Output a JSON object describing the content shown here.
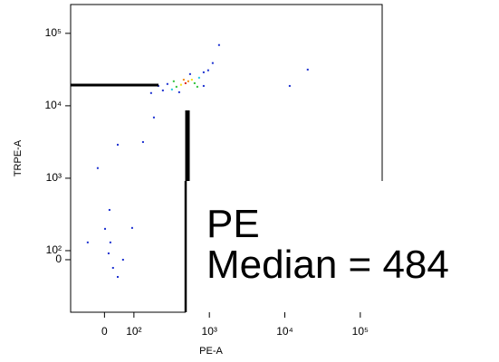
{
  "chart_data": {
    "type": "scatter",
    "x_label": "PE-A",
    "y_label": "TRPE-A",
    "annotation": [
      "PE",
      "Median = 484"
    ],
    "xlim": [
      -115,
      195000
    ],
    "ylim": [
      -580,
      250000
    ],
    "xticks": [
      0,
      {
        "value": 100,
        "label": "10²"
      },
      {
        "value": 1000,
        "label": "10³"
      },
      {
        "value": 10000,
        "label": "10⁴"
      },
      {
        "value": 100000,
        "label": "10⁵"
      }
    ],
    "yticks": [
      0,
      {
        "value": 100,
        "label": "10²"
      },
      {
        "value": 1000,
        "label": "10³"
      },
      {
        "value": 10000,
        "label": "10⁴"
      },
      {
        "value": 100000,
        "label": "10⁵"
      }
    ],
    "x": [
      1343,
      20100,
      11600,
      840,
      169,
      184,
      132,
      45,
      -23,
      17,
      94,
      -57,
      20,
      14,
      29,
      63,
      45,
      2,
      483,
      525,
      421,
      586,
      366,
      637,
      319,
      731,
      278,
      398,
      840,
      242,
      555,
      964,
      211,
      457,
      692,
      337,
      1107
    ],
    "values": [
      69000,
      31600,
      18800,
      29000,
      15000,
      6900,
      3160,
      2900,
      1380,
      365,
      206,
      130,
      130,
      70,
      -90,
      0,
      -190,
      200,
      20500,
      21800,
      19500,
      22900,
      18300,
      20500,
      16800,
      24400,
      20000,
      15400,
      18800,
      16300,
      27400,
      30900,
      18800,
      22900,
      18300,
      21800,
      38900
    ],
    "colors": [
      "#1a2fd0",
      "#1a2fd0",
      "#1a2fd0",
      "#1a2fd0",
      "#1a2fd0",
      "#1a2fd0",
      "#1a2fd0",
      "#1a2fd0",
      "#1a2fd0",
      "#1a2fd0",
      "#1a2fd0",
      "#1a2fd0",
      "#1a2fd0",
      "#1a2fd0",
      "#1a2fd0",
      "#1a2fd0",
      "#1a2fd0",
      "#1a2fd0",
      "#e02010",
      "#f08a10",
      "#f2e21a",
      "#f2e21a",
      "#2ec23a",
      "#2ec23a",
      "#20c8e0",
      "#20c8e0",
      "#1a2fd0",
      "#1a2fd0",
      "#1a2fd0",
      "#1a2fd0",
      "#1a2fd0",
      "#1a2fd0",
      "#1a2fd0",
      "#f08a10",
      "#2ec23a",
      "#2ec23a",
      "#1a2fd0"
    ]
  }
}
